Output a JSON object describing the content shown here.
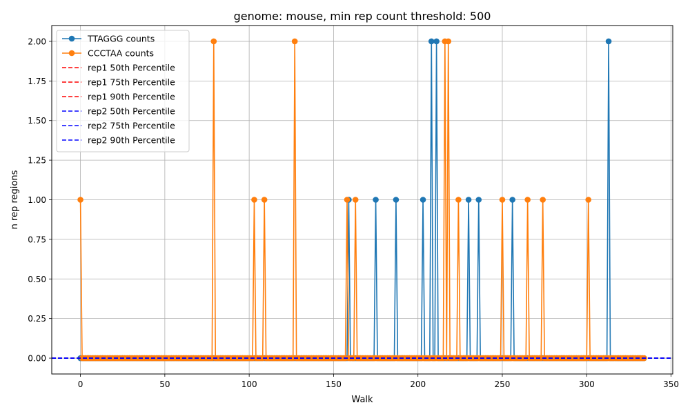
{
  "chart_data": {
    "type": "line",
    "title": "genome: mouse, min rep count threshold: 500",
    "xlabel": "Walk",
    "ylabel": "n rep regions",
    "xlim": [
      -17,
      351
    ],
    "ylim": [
      -0.1,
      2.1
    ],
    "xticks": [
      0,
      50,
      100,
      150,
      200,
      250,
      300,
      350
    ],
    "yticks": [
      0.0,
      0.25,
      0.5,
      0.75,
      1.0,
      1.25,
      1.5,
      1.75,
      2.0
    ],
    "xtick_labels": [
      "0",
      "50",
      "100",
      "150",
      "200",
      "250",
      "300",
      "350"
    ],
    "ytick_labels": [
      "0.00",
      "0.25",
      "0.50",
      "0.75",
      "1.00",
      "1.25",
      "1.50",
      "1.75",
      "2.00"
    ],
    "grid": true,
    "legend_position": "upper-left",
    "x_start": 0,
    "x_end": 334,
    "series": [
      {
        "name": "TTAGGG counts",
        "color": "#1f77b4",
        "marker": "circle",
        "default_value": 0,
        "nonzero": [
          [
            159,
            1
          ],
          [
            175,
            1
          ],
          [
            187,
            1
          ],
          [
            203,
            1
          ],
          [
            208,
            2
          ],
          [
            211,
            2
          ],
          [
            230,
            1
          ],
          [
            236,
            1
          ],
          [
            256,
            1
          ],
          [
            313,
            2
          ]
        ]
      },
      {
        "name": "CCCTAA counts",
        "color": "#ff7f0e",
        "marker": "circle",
        "default_value": 0,
        "nonzero": [
          [
            0,
            1
          ],
          [
            79,
            2
          ],
          [
            103,
            1
          ],
          [
            109,
            1
          ],
          [
            127,
            2
          ],
          [
            158,
            1
          ],
          [
            163,
            1
          ],
          [
            216,
            2
          ],
          [
            218,
            2
          ],
          [
            224,
            1
          ],
          [
            250,
            1
          ],
          [
            265,
            1
          ],
          [
            274,
            1
          ],
          [
            301,
            1
          ]
        ]
      }
    ],
    "hlines": [
      {
        "name": "rep1 50th Percentile",
        "value": 0,
        "color": "#ff0000",
        "style": "dashed"
      },
      {
        "name": "rep1 75th Percentile",
        "value": 0,
        "color": "#ff0000",
        "style": "dashed"
      },
      {
        "name": "rep1 90th Percentile",
        "value": 0,
        "color": "#ff0000",
        "style": "dashed"
      },
      {
        "name": "rep2 50th Percentile",
        "value": 0,
        "color": "#0000ff",
        "style": "dashed"
      },
      {
        "name": "rep2 75th Percentile",
        "value": 0,
        "color": "#0000ff",
        "style": "dashed"
      },
      {
        "name": "rep2 90th Percentile",
        "value": 0,
        "color": "#0000ff",
        "style": "dashed"
      }
    ]
  }
}
